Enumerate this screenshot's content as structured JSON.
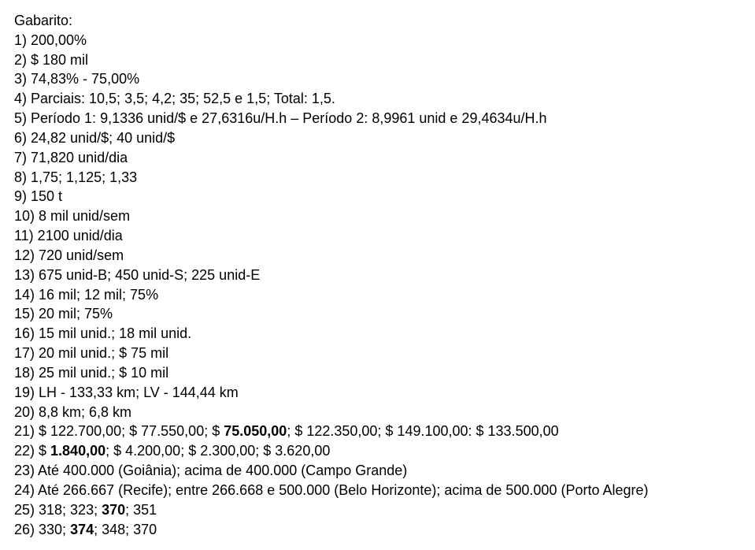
{
  "title": "Gabarito:",
  "lines": [
    {
      "id": "l1",
      "parts": [
        {
          "t": "1) 200,00%",
          "b": false
        }
      ]
    },
    {
      "id": "l2",
      "parts": [
        {
          "t": "2) $ 180 mil",
          "b": false
        }
      ]
    },
    {
      "id": "l3",
      "parts": [
        {
          "t": "3) 74,83% - 75,00%",
          "b": false
        }
      ]
    },
    {
      "id": "l4",
      "parts": [
        {
          "t": "4) Parciais: 10,5; 3,5; 4,2; 35; 52,5 e 1,5; Total: 1,5.",
          "b": false
        }
      ]
    },
    {
      "id": "l5",
      "parts": [
        {
          "t": "5) Período 1: 9,1336 unid/$ e 27,6316u/H.h – Período 2: 8,9961 unid e 29,4634u/H.h",
          "b": false
        }
      ]
    },
    {
      "id": "l6",
      "parts": [
        {
          "t": "6) 24,82 unid/$; 40 unid/$",
          "b": false
        }
      ]
    },
    {
      "id": "l7",
      "parts": [
        {
          "t": "7) 71,820 unid/dia",
          "b": false
        }
      ]
    },
    {
      "id": "l8",
      "parts": [
        {
          "t": "8) 1,75; 1,125; 1,33",
          "b": false
        }
      ]
    },
    {
      "id": "l9",
      "parts": [
        {
          "t": "9) 150 t",
          "b": false
        }
      ]
    },
    {
      "id": "l10",
      "parts": [
        {
          "t": "10) 8 mil unid/sem",
          "b": false
        }
      ]
    },
    {
      "id": "l11",
      "parts": [
        {
          "t": "11) 2100 unid/dia",
          "b": false
        }
      ]
    },
    {
      "id": "l12",
      "parts": [
        {
          "t": "12) 720 unid/sem",
          "b": false
        }
      ]
    },
    {
      "id": "l13",
      "parts": [
        {
          "t": "13) 675 unid-B; 450 unid-S; 225 unid-E",
          "b": false
        }
      ]
    },
    {
      "id": "l14",
      "parts": [
        {
          "t": "14) 16 mil; 12 mil; 75%",
          "b": false
        }
      ]
    },
    {
      "id": "l15",
      "parts": [
        {
          "t": "15) 20 mil; 75%",
          "b": false
        }
      ]
    },
    {
      "id": "l16",
      "parts": [
        {
          "t": "16) 15 mil unid.; 18 mil unid.",
          "b": false
        }
      ]
    },
    {
      "id": "l17",
      "parts": [
        {
          "t": "17) 20 mil unid.; $ 75 mil",
          "b": false
        }
      ]
    },
    {
      "id": "l18",
      "parts": [
        {
          "t": "18) 25 mil unid.; $ 10 mil",
          "b": false
        }
      ]
    },
    {
      "id": "l19",
      "parts": [
        {
          "t": "19) LH - 133,33 km; LV - 144,44 km",
          "b": false
        }
      ]
    },
    {
      "id": "l20",
      "parts": [
        {
          "t": "20) 8,8 km; 6,8 km",
          "b": false
        }
      ]
    },
    {
      "id": "l21",
      "parts": [
        {
          "t": "21) $ 122.700,00; $ 77.550,00; $ ",
          "b": false
        },
        {
          "t": "75.050,00",
          "b": true
        },
        {
          "t": "; $ 122.350,00; $ 149.100,00: $ 133.500,00",
          "b": false
        }
      ]
    },
    {
      "id": "l22",
      "parts": [
        {
          "t": "22) $ ",
          "b": false
        },
        {
          "t": "1.840,00",
          "b": true
        },
        {
          "t": "; $ 4.200,00; $ 2.300,00; $ 3.620,00",
          "b": false
        }
      ]
    },
    {
      "id": "l23",
      "parts": [
        {
          "t": "23) Até 400.000 (Goiânia); acima de 400.000 (Campo Grande)",
          "b": false
        }
      ]
    },
    {
      "id": "l24",
      "parts": [
        {
          "t": "24) Até 266.667 (Recife); entre 266.668 e 500.000 (Belo Horizonte); acima de 500.000 (Porto Alegre)",
          "b": false
        }
      ]
    },
    {
      "id": "l25",
      "parts": [
        {
          "t": "25) 318; 323; ",
          "b": false
        },
        {
          "t": "370",
          "b": true
        },
        {
          "t": "; 351",
          "b": false
        }
      ]
    },
    {
      "id": "l26",
      "parts": [
        {
          "t": "26) 330; ",
          "b": false
        },
        {
          "t": "374",
          "b": true
        },
        {
          "t": "; 348; 370",
          "b": false
        }
      ]
    }
  ]
}
